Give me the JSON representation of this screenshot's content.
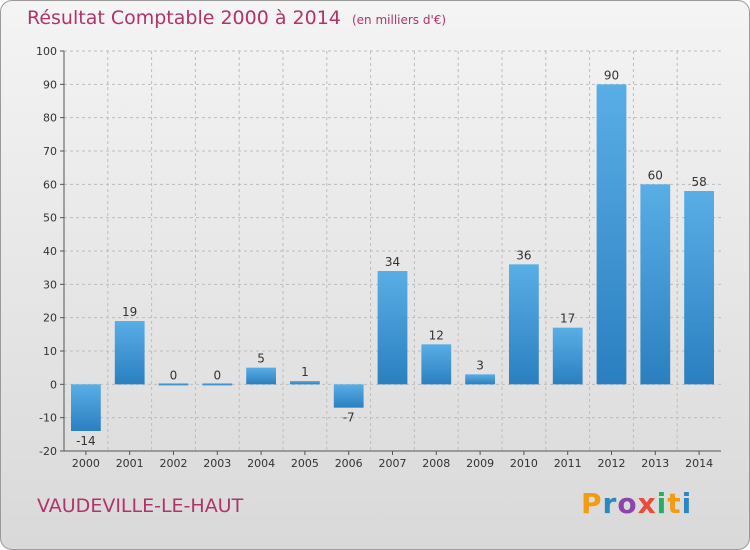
{
  "title": "Résultat Comptable 2000 à 2014",
  "unit_note": "(en milliers d'€)",
  "commune": "VAUDEVILLE-LE-HAUT",
  "logo": {
    "letters": [
      "P",
      "r",
      "o",
      "x",
      "i",
      "t",
      "i"
    ],
    "colors": [
      "#f39c12",
      "#2e86c1",
      "#8e44ad",
      "#e74c3c",
      "#27ae60",
      "#f39c12",
      "#2e86c1"
    ]
  },
  "colors": {
    "bar_top": "#5aaee6",
    "bar_bottom": "#2a7fc0",
    "grid": "#bdbdbd",
    "title": "#b0346b"
  },
  "chart_data": {
    "type": "bar",
    "title": "Résultat Comptable 2000 à 2014",
    "xlabel": "",
    "ylabel": "",
    "categories": [
      "2000",
      "2001",
      "2002",
      "2003",
      "2004",
      "2005",
      "2006",
      "2007",
      "2008",
      "2009",
      "2010",
      "2011",
      "2012",
      "2013",
      "2014"
    ],
    "values": [
      -14,
      19,
      0,
      0,
      5,
      1,
      -7,
      34,
      12,
      3,
      36,
      17,
      90,
      60,
      58
    ],
    "ylim": [
      -20,
      100
    ],
    "yticks": [
      -20,
      -10,
      0,
      10,
      20,
      30,
      40,
      50,
      60,
      70,
      80,
      90,
      100
    ],
    "grid": true
  }
}
